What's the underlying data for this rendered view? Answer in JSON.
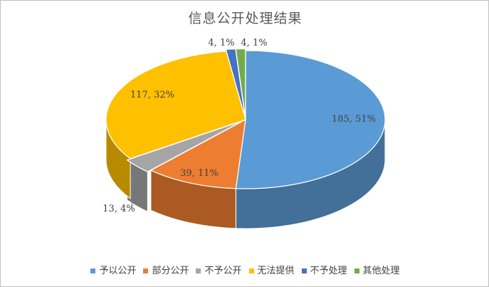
{
  "chart_data": {
    "type": "pie",
    "title": "信息公开处理结果",
    "categories": [
      "予以公开",
      "部分公开",
      "不予公开",
      "无法提供",
      "不予处理",
      "其他处理"
    ],
    "values": [
      185,
      39,
      13,
      117,
      4,
      4
    ],
    "percents": [
      "51%",
      "11%",
      "4%",
      "32%",
      "1%",
      "1%"
    ],
    "data_labels": [
      "185, 51%",
      "39, 11%",
      "13, 4%",
      "117, 32%",
      "4, 1%",
      "4, 1%"
    ],
    "colors": [
      "#5b9bd5",
      "#ed7d31",
      "#a5a5a5",
      "#ffc000",
      "#4472c4",
      "#70ad47"
    ],
    "legend_position": "bottom",
    "style": "3d-exploded"
  }
}
